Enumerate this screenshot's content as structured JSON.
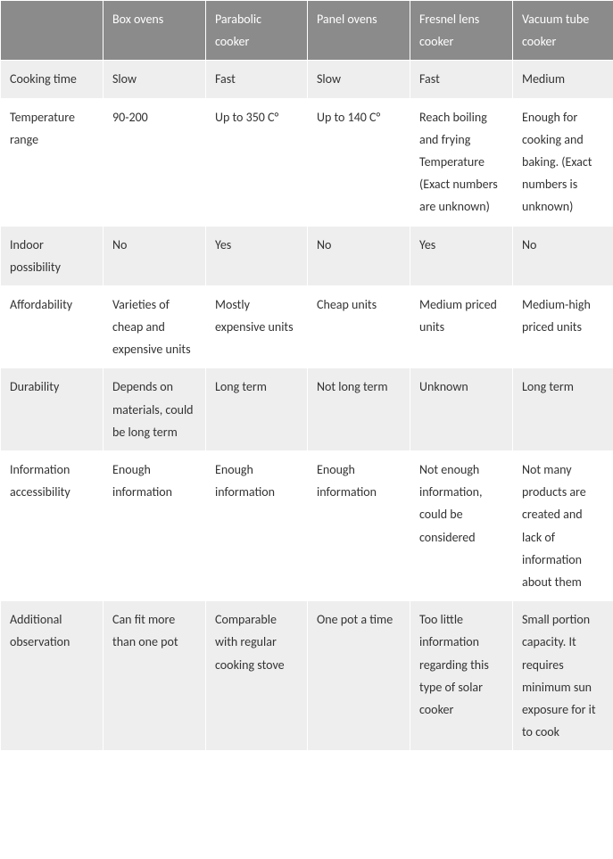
{
  "table": {
    "columns": [
      "",
      "Box ovens",
      "Parabolic cooker",
      "Panel ovens",
      "Fresnel lens cooker",
      "Vacuum tube cooker"
    ],
    "rows": [
      {
        "label": "Cooking time",
        "cells": [
          "Slow",
          "Fast",
          "Slow",
          "Fast",
          "Medium"
        ]
      },
      {
        "label": "Temperature range",
        "cells": [
          "90-200",
          "Up to 350 C°",
          "Up to 140 C°",
          "Reach boiling and frying Temperature (Exact numbers are unknown)",
          "Enough for cooking and baking. (Exact numbers is unknown)"
        ]
      },
      {
        "label": "Indoor possibility",
        "cells": [
          "No",
          "Yes",
          "No",
          "Yes",
          "No"
        ]
      },
      {
        "label": "Affordability",
        "cells": [
          "Varieties of cheap and expensive units",
          "Mostly expensive units",
          "Cheap units",
          "Medium priced units",
          "Medium-high priced units"
        ]
      },
      {
        "label": "Durability",
        "cells": [
          "Depends on materials, could be long term",
          "Long term",
          "Not long term",
          " Unknown",
          "Long term"
        ]
      },
      {
        "label": "Information accessibility",
        "cells": [
          "Enough information",
          "Enough information",
          "Enough information",
          "Not enough information, could be considered",
          "Not many products are created and lack of information about them"
        ]
      },
      {
        "label": "Additional observation",
        "cells": [
          "Can fit more than one pot",
          "Comparable with regular cooking stove",
          "One pot a time",
          "Too little information regarding this type of solar cooker",
          "Small portion capacity. It requires minimum sun exposure for it to cook"
        ]
      }
    ],
    "zebra": [
      "dark",
      "light",
      "dark",
      "light",
      "dark",
      "light",
      "dark"
    ]
  }
}
